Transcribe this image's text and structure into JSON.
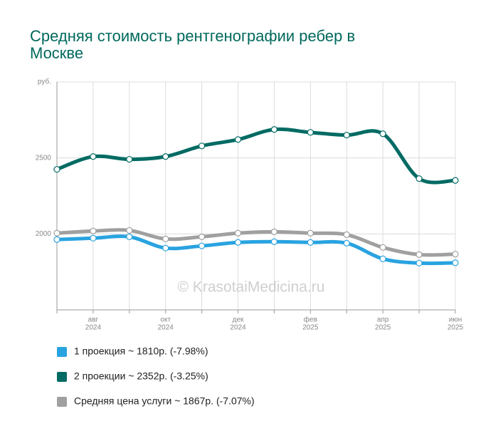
{
  "chart_data": {
    "type": "line",
    "title_lines": [
      "Средняя стоимость рентгенографии ребер в",
      "Москве"
    ],
    "watermark": "© KrasotaiMedicina.ru",
    "categories": [
      null,
      [
        "авг",
        "2024"
      ],
      null,
      [
        "окт",
        "2024"
      ],
      null,
      [
        "дек",
        "2024"
      ],
      null,
      [
        "фев",
        "2025"
      ],
      null,
      [
        "апр",
        "2025"
      ],
      null,
      [
        "июн",
        "2025"
      ]
    ],
    "ylim": [
      1500,
      3000
    ],
    "yticks": [
      2000,
      2500,
      {
        "value": 3000,
        "label": "руб."
      }
    ],
    "grid": true,
    "legend": "bottom",
    "series": [
      {
        "name": "1 проекция ~ 1810р. (-7.98%)",
        "color": "#29a3e0",
        "values": [
          1963,
          1972,
          1981,
          1907,
          1921,
          1944,
          1949,
          1944,
          1939,
          1836,
          1808,
          1810
        ]
      },
      {
        "name": "2 проекции ~ 2352р. (-3.25%)",
        "color": "#006b63",
        "values": [
          2425,
          2509,
          2491,
          2509,
          2579,
          2621,
          2687,
          2668,
          2650,
          2659,
          2364,
          2352
        ]
      },
      {
        "name": "Средняя цена услуги ~ 1867р. (-7.07%)",
        "color": "#a0a0a0",
        "values": [
          2005,
          2019,
          2023,
          1967,
          1981,
          2005,
          2014,
          2005,
          1995,
          1911,
          1864,
          1867
        ]
      }
    ]
  }
}
